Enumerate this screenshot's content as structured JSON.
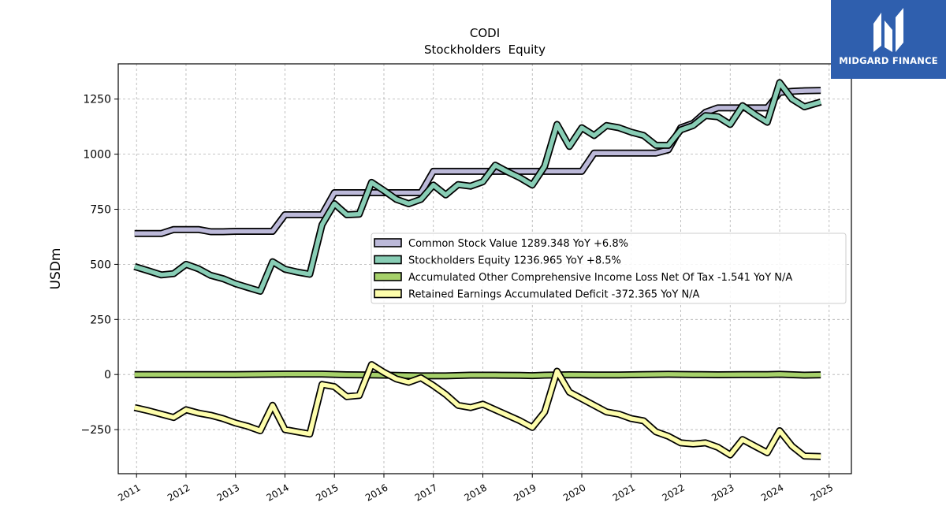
{
  "brand": {
    "name": "MIDGARD FINANCE",
    "color": "#2f5fae"
  },
  "chart_data": {
    "type": "line",
    "title": "CODI",
    "subtitle": "Stockholders  Equity",
    "xlabel": "",
    "ylabel": "USDm",
    "ylim": [
      -450,
      1410
    ],
    "xlim": [
      2010.63,
      2025.45
    ],
    "yticks": [
      -250,
      0,
      250,
      500,
      750,
      1000,
      1250
    ],
    "ytick_labels": [
      "−250",
      "0",
      "250",
      "500",
      "750",
      "1000",
      "1250"
    ],
    "xticks": [
      2011,
      2012,
      2013,
      2014,
      2015,
      2016,
      2017,
      2018,
      2019,
      2020,
      2021,
      2022,
      2023,
      2024,
      2025
    ],
    "xtick_labels": [
      "2011",
      "2012",
      "2013",
      "2014",
      "2015",
      "2016",
      "2017",
      "2018",
      "2019",
      "2020",
      "2021",
      "2022",
      "2023",
      "2024",
      "2025"
    ],
    "grid": true,
    "legend_position": "right-center",
    "series": [
      {
        "name": "Common Stock Value",
        "legend": "Common Stock Value  1289.348 YoY +6.8%",
        "color": "#bcb9d9",
        "x": [
          2010.96,
          2011.5,
          2011.75,
          2012.0,
          2012.25,
          2012.5,
          2012.75,
          2013.0,
          2013.25,
          2013.5,
          2013.75,
          2014.0,
          2014.25,
          2014.5,
          2014.75,
          2015.0,
          2015.25,
          2015.5,
          2015.75,
          2016.0,
          2016.25,
          2016.5,
          2016.75,
          2017.0,
          2017.25,
          2017.5,
          2017.75,
          2018.0,
          2018.25,
          2018.5,
          2018.75,
          2019.0,
          2019.25,
          2019.5,
          2019.75,
          2020.0,
          2020.25,
          2020.5,
          2020.75,
          2021.0,
          2021.25,
          2021.5,
          2021.75,
          2022.0,
          2022.25,
          2022.5,
          2022.75,
          2023.0,
          2023.25,
          2023.5,
          2023.75,
          2024.0,
          2024.25,
          2024.5,
          2024.83
        ],
        "values": [
          640,
          640,
          658,
          658,
          658,
          648,
          648,
          650,
          650,
          650,
          650,
          725,
          725,
          725,
          725,
          825,
          825,
          825,
          825,
          825,
          825,
          825,
          825,
          922,
          922,
          922,
          922,
          922,
          922,
          922,
          922,
          922,
          922,
          922,
          922,
          922,
          1005,
          1005,
          1005,
          1005,
          1005,
          1005,
          1020,
          1120,
          1140,
          1190,
          1210,
          1210,
          1210,
          1210,
          1210,
          1280,
          1285,
          1288,
          1289.348
        ]
      },
      {
        "name": "Stockholders Equity",
        "legend": "Stockholders Equity  1236.965 YoY +8.5%",
        "color": "#88cdb5",
        "x": [
          2010.96,
          2011.25,
          2011.5,
          2011.75,
          2012.0,
          2012.25,
          2012.5,
          2012.75,
          2013.0,
          2013.25,
          2013.5,
          2013.75,
          2014.0,
          2014.25,
          2014.5,
          2014.75,
          2015.0,
          2015.25,
          2015.5,
          2015.75,
          2016.0,
          2016.25,
          2016.5,
          2016.75,
          2017.0,
          2017.25,
          2017.5,
          2017.75,
          2018.0,
          2018.25,
          2018.5,
          2018.75,
          2019.0,
          2019.25,
          2019.5,
          2019.75,
          2020.0,
          2020.25,
          2020.5,
          2020.75,
          2021.0,
          2021.25,
          2021.5,
          2021.75,
          2022.0,
          2022.25,
          2022.5,
          2022.75,
          2023.0,
          2023.25,
          2023.5,
          2023.75,
          2024.0,
          2024.25,
          2024.5,
          2024.83
        ],
        "values": [
          490,
          470,
          452,
          458,
          500,
          480,
          450,
          435,
          412,
          395,
          378,
          512,
          478,
          465,
          455,
          680,
          775,
          725,
          728,
          872,
          835,
          795,
          775,
          795,
          860,
          815,
          862,
          855,
          875,
          950,
          920,
          893,
          860,
          945,
          1135,
          1035,
          1120,
          1085,
          1130,
          1120,
          1100,
          1085,
          1040,
          1040,
          1110,
          1130,
          1175,
          1170,
          1135,
          1220,
          1180,
          1145,
          1325,
          1250,
          1215,
          1236.965
        ]
      },
      {
        "name": "Accumulated Other Comprehensive Income Loss Net Of Tax",
        "legend": "Accumulated Other Comprehensive Income Loss Net Of Tax  -1.541 YoY N/A",
        "color": "#a6d16a",
        "x": [
          2010.96,
          2012.0,
          2013.0,
          2014.0,
          2014.75,
          2015.25,
          2015.75,
          2016.25,
          2016.75,
          2017.25,
          2017.75,
          2018.25,
          2018.75,
          2019.0,
          2019.25,
          2019.75,
          2020.25,
          2020.75,
          2021.25,
          2021.75,
          2022.25,
          2022.75,
          2023.25,
          2023.75,
          2024.0,
          2024.5,
          2024.83
        ],
        "values": [
          0,
          0,
          0,
          2,
          2,
          -1,
          -2,
          -4,
          -6,
          -6,
          -3,
          -3,
          -4,
          -5,
          -3,
          -1,
          -2,
          -2,
          0,
          1,
          0,
          -1,
          0,
          0,
          1,
          -3,
          -1.541
        ]
      },
      {
        "name": "Retained Earnings Accumulated Deficit",
        "legend": "Retained Earnings Accumulated Deficit  -372.365 YoY N/A",
        "color": "#fdfdab",
        "x": [
          2010.96,
          2011.25,
          2011.5,
          2011.75,
          2012.0,
          2012.25,
          2012.5,
          2012.75,
          2013.0,
          2013.25,
          2013.5,
          2013.75,
          2014.0,
          2014.25,
          2014.5,
          2014.75,
          2015.0,
          2015.25,
          2015.5,
          2015.75,
          2016.0,
          2016.25,
          2016.5,
          2016.75,
          2017.0,
          2017.25,
          2017.5,
          2017.75,
          2018.0,
          2018.25,
          2018.5,
          2018.75,
          2019.0,
          2019.25,
          2019.5,
          2019.75,
          2020.0,
          2020.25,
          2020.5,
          2020.75,
          2021.0,
          2021.25,
          2021.5,
          2021.75,
          2022.0,
          2022.25,
          2022.5,
          2022.75,
          2023.0,
          2023.25,
          2023.5,
          2023.75,
          2024.0,
          2024.25,
          2024.5,
          2024.83
        ],
        "values": [
          -150,
          -165,
          -180,
          -195,
          -160,
          -175,
          -185,
          -200,
          -220,
          -235,
          -255,
          -140,
          -250,
          -260,
          -270,
          -45,
          -55,
          -100,
          -95,
          45,
          10,
          -20,
          -35,
          -15,
          -50,
          -90,
          -140,
          -150,
          -135,
          -160,
          -185,
          -210,
          -240,
          -170,
          15,
          -80,
          -110,
          -140,
          -170,
          -180,
          -200,
          -210,
          -260,
          -280,
          -310,
          -315,
          -310,
          -330,
          -365,
          -295,
          -325,
          -355,
          -255,
          -325,
          -370,
          -372.365
        ]
      }
    ]
  }
}
